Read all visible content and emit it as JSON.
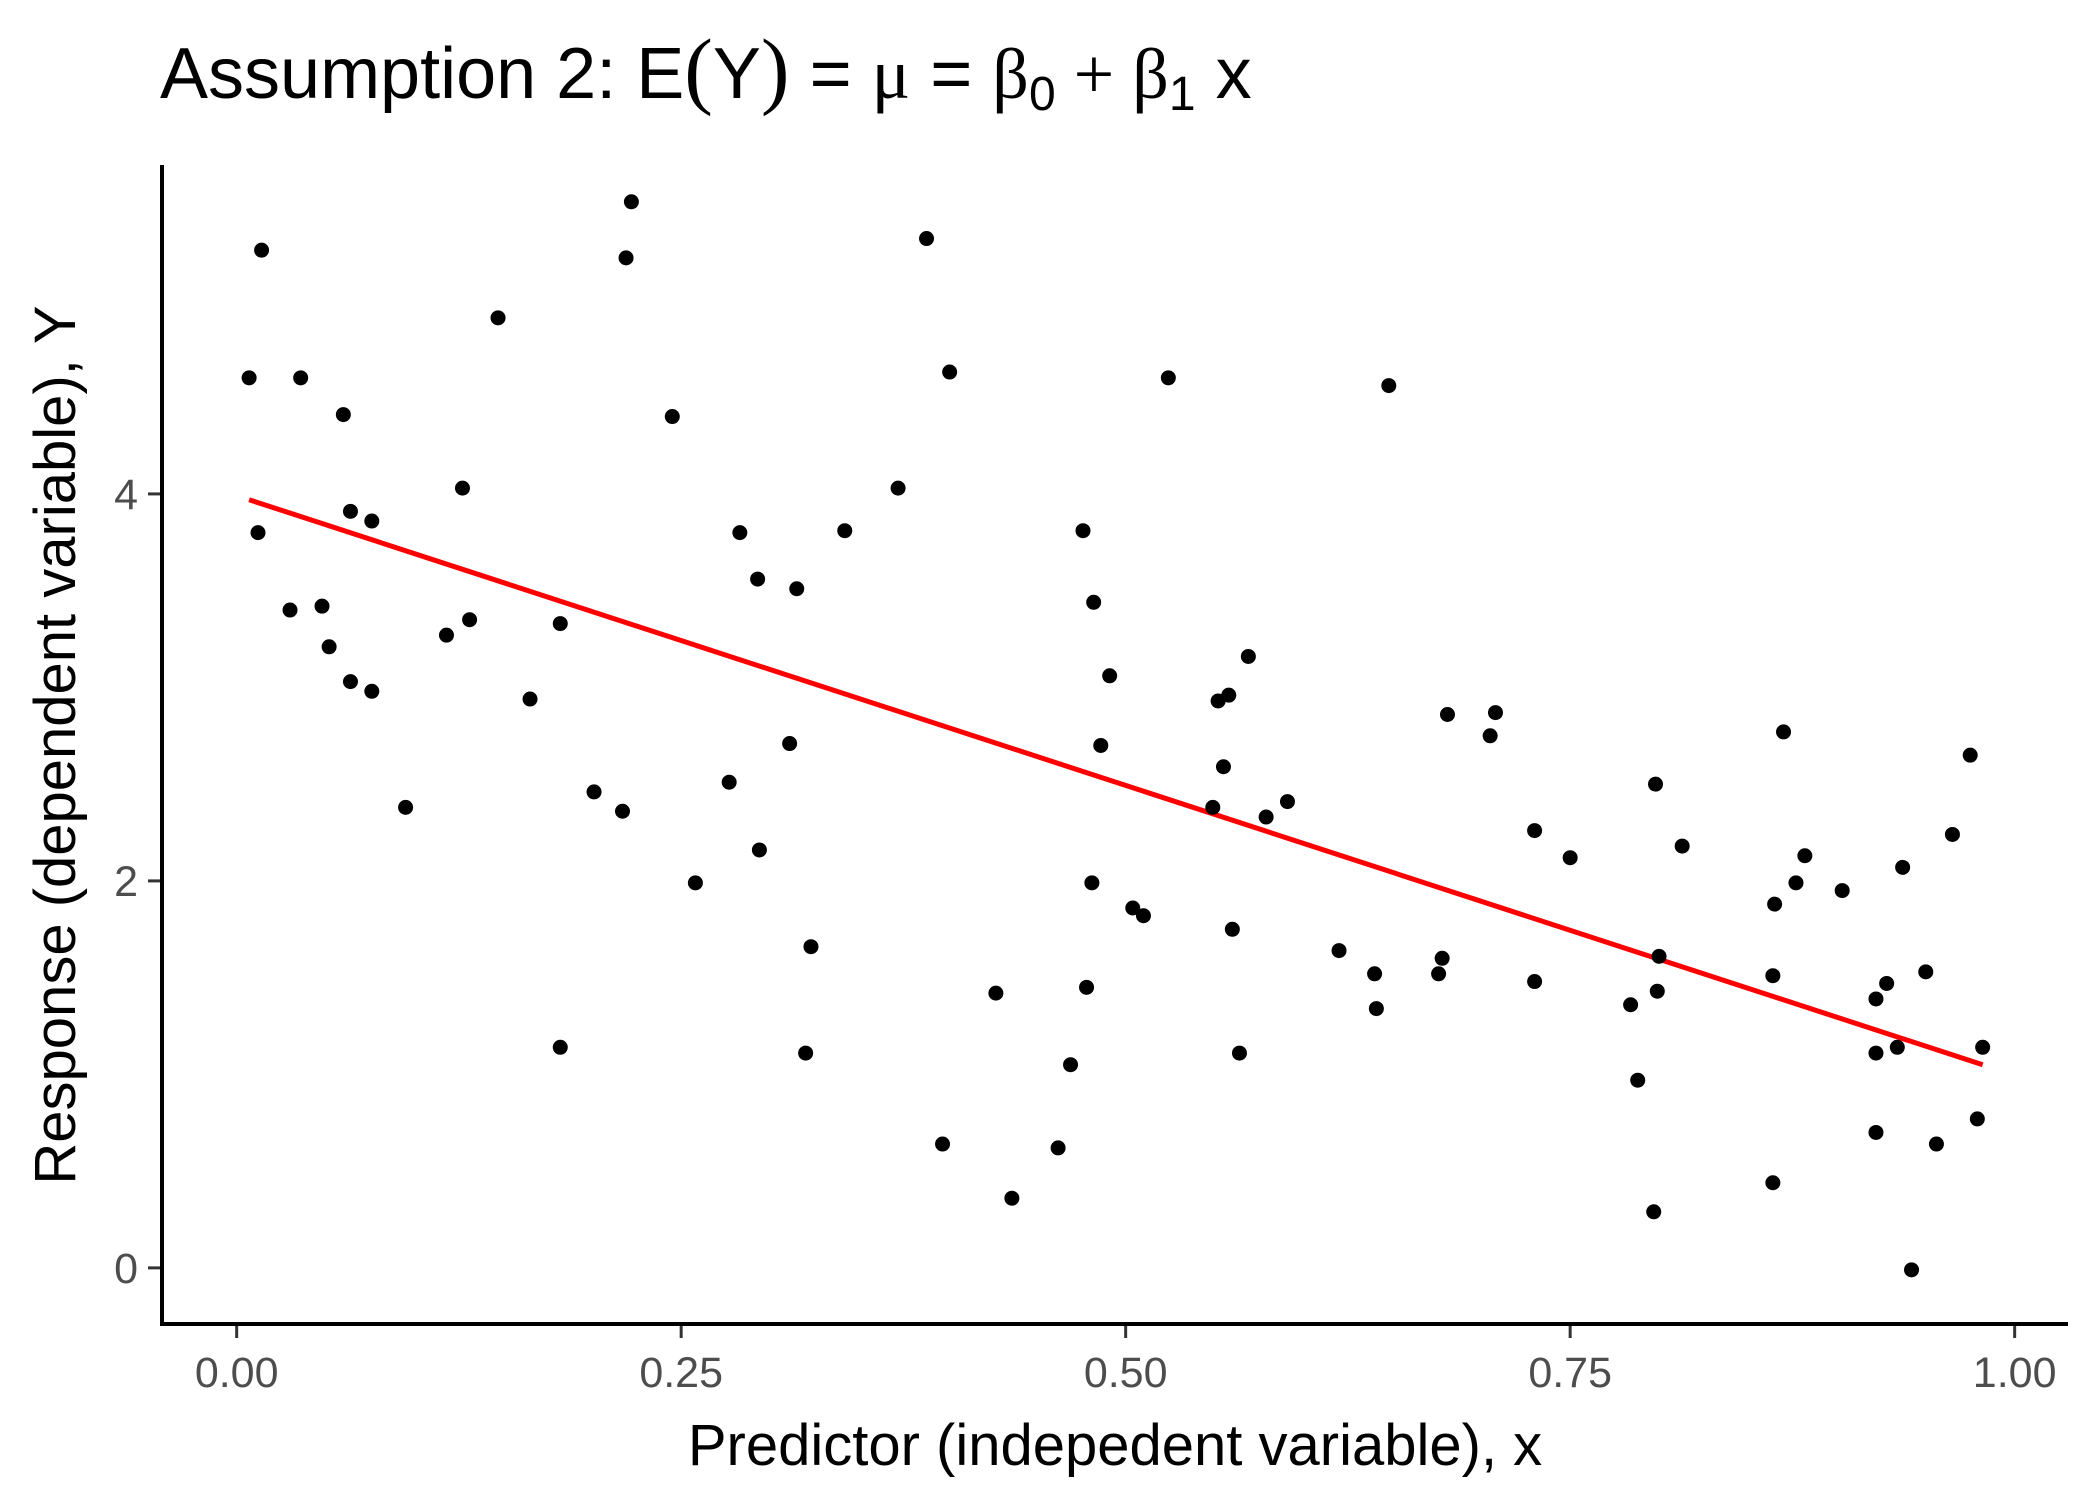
{
  "chart_data": {
    "type": "scatter",
    "title": {
      "prefix": "Assumption 2:  E",
      "open_paren": "(",
      "var": "Y",
      "close_paren": ")",
      "eq1": " = ",
      "mu": "μ",
      "eq2": " = ",
      "beta0": "β",
      "sub0": "0",
      "plus": " + ",
      "beta1": "β",
      "sub1": "1",
      "suffix": " x"
    },
    "xlabel": "Predictor (indepedent variable), x",
    "ylabel": "Response (dependent variable), Y",
    "xlim": [
      -0.042,
      1.03
    ],
    "ylim": [
      -0.29,
      5.7
    ],
    "x_ticks": [
      {
        "value": 0.0,
        "label": "0.00"
      },
      {
        "value": 0.25,
        "label": "0.25"
      },
      {
        "value": 0.5,
        "label": "0.50"
      },
      {
        "value": 0.75,
        "label": "0.75"
      },
      {
        "value": 1.0,
        "label": "1.00"
      }
    ],
    "y_ticks": [
      {
        "value": 0,
        "label": "0"
      },
      {
        "value": 2,
        "label": "2"
      },
      {
        "value": 4,
        "label": "4"
      }
    ],
    "grid": false,
    "fit_line": {
      "color": "#ff0000",
      "x": [
        0.007,
        0.982
      ],
      "y": [
        3.97,
        1.05
      ]
    },
    "points": {
      "color": "#000000",
      "x": [
        0.007,
        0.014,
        0.012,
        0.03,
        0.036,
        0.048,
        0.052,
        0.06,
        0.064,
        0.064,
        0.076,
        0.076,
        0.095,
        0.118,
        0.127,
        0.131,
        0.147,
        0.165,
        0.182,
        0.182,
        0.201,
        0.217,
        0.219,
        0.222,
        0.245,
        0.258,
        0.277,
        0.283,
        0.293,
        0.294,
        0.311,
        0.315,
        0.32,
        0.323,
        0.342,
        0.372,
        0.388,
        0.397,
        0.401,
        0.427,
        0.436,
        0.462,
        0.469,
        0.476,
        0.478,
        0.481,
        0.482,
        0.486,
        0.491,
        0.504,
        0.51,
        0.524,
        0.549,
        0.552,
        0.555,
        0.558,
        0.56,
        0.564,
        0.569,
        0.579,
        0.591,
        0.62,
        0.64,
        0.641,
        0.648,
        0.676,
        0.678,
        0.681,
        0.705,
        0.708,
        0.73,
        0.73,
        0.75,
        0.784,
        0.788,
        0.797,
        0.798,
        0.799,
        0.8,
        0.813,
        0.865,
        0.864,
        0.864,
        0.87,
        0.877,
        0.882,
        0.903,
        0.922,
        0.922,
        0.922,
        0.928,
        0.934,
        0.937,
        0.942,
        0.95,
        0.956,
        0.965,
        0.975,
        0.979,
        0.982
      ],
      "y": [
        4.6,
        5.26,
        3.8,
        3.4,
        4.6,
        3.42,
        3.21,
        4.41,
        3.91,
        3.03,
        3.86,
        2.98,
        2.38,
        3.27,
        4.03,
        3.35,
        4.91,
        2.94,
        3.33,
        1.14,
        2.46,
        2.36,
        5.22,
        5.51,
        4.4,
        1.99,
        2.51,
        3.8,
        3.56,
        2.16,
        2.71,
        3.51,
        1.11,
        1.66,
        3.81,
        4.03,
        5.32,
        0.64,
        4.63,
        1.42,
        0.36,
        0.62,
        1.05,
        3.81,
        1.45,
        1.99,
        3.44,
        2.7,
        3.06,
        1.86,
        1.82,
        4.6,
        2.38,
        2.93,
        2.59,
        2.96,
        1.75,
        1.11,
        3.16,
        2.33,
        2.41,
        1.64,
        1.52,
        1.34,
        4.56,
        1.52,
        1.6,
        2.86,
        2.75,
        2.87,
        2.26,
        1.48,
        2.12,
        1.36,
        0.97,
        0.29,
        2.5,
        1.43,
        1.61,
        2.18,
        1.88,
        1.51,
        0.44,
        2.77,
        1.99,
        2.13,
        1.95,
        1.39,
        0.7,
        1.11,
        1.47,
        1.14,
        2.07,
        -0.01,
        1.53,
        0.64,
        2.24,
        2.65,
        0.77,
        1.14
      ]
    }
  }
}
